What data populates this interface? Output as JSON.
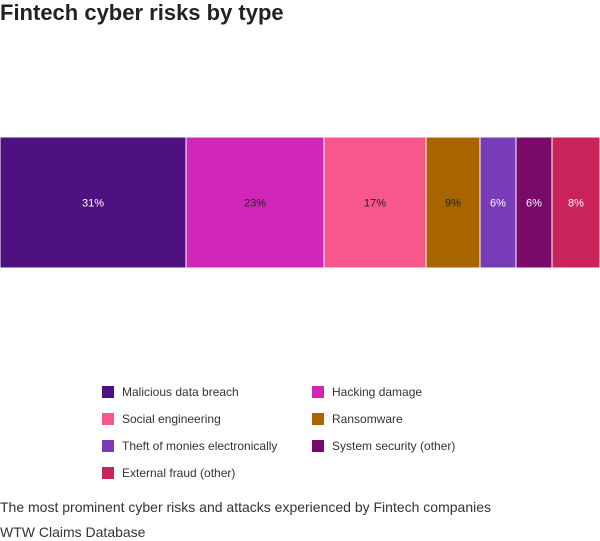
{
  "chart_data": {
    "type": "bar",
    "orientation": "horizontal-stacked-100",
    "title": "Fintech cyber risks by type",
    "subtitle": "The most prominent cyber risks and attacks experienced by Fintech companies",
    "source": "WTW Claims Database",
    "unit": "%",
    "series": [
      {
        "name": "Malicious data breach",
        "value": 31,
        "label": "31%",
        "color": "#4f1080",
        "label_color": "#ffffff"
      },
      {
        "name": "Hacking damage",
        "value": 23,
        "label": "23%",
        "color": "#d127b8",
        "label_color": "#222222"
      },
      {
        "name": "Social engineering",
        "value": 17,
        "label": "17%",
        "color": "#f7578a",
        "label_color": "#222222"
      },
      {
        "name": "Ransomware",
        "value": 9,
        "label": "9%",
        "color": "#a86400",
        "label_color": "#222222"
      },
      {
        "name": "Theft of monies electronically",
        "value": 6,
        "label": "6%",
        "color": "#7a3bb8",
        "label_color": "#ffffff"
      },
      {
        "name": "System security (other)",
        "value": 6,
        "label": "6%",
        "color": "#7a0a6a",
        "label_color": "#ffffff"
      },
      {
        "name": "External fraud (other)",
        "value": 8,
        "label": "8%",
        "color": "#c9235a",
        "label_color": "#ffffff"
      }
    ],
    "legend": {
      "placement": "bottom-center",
      "columns": 2
    }
  }
}
